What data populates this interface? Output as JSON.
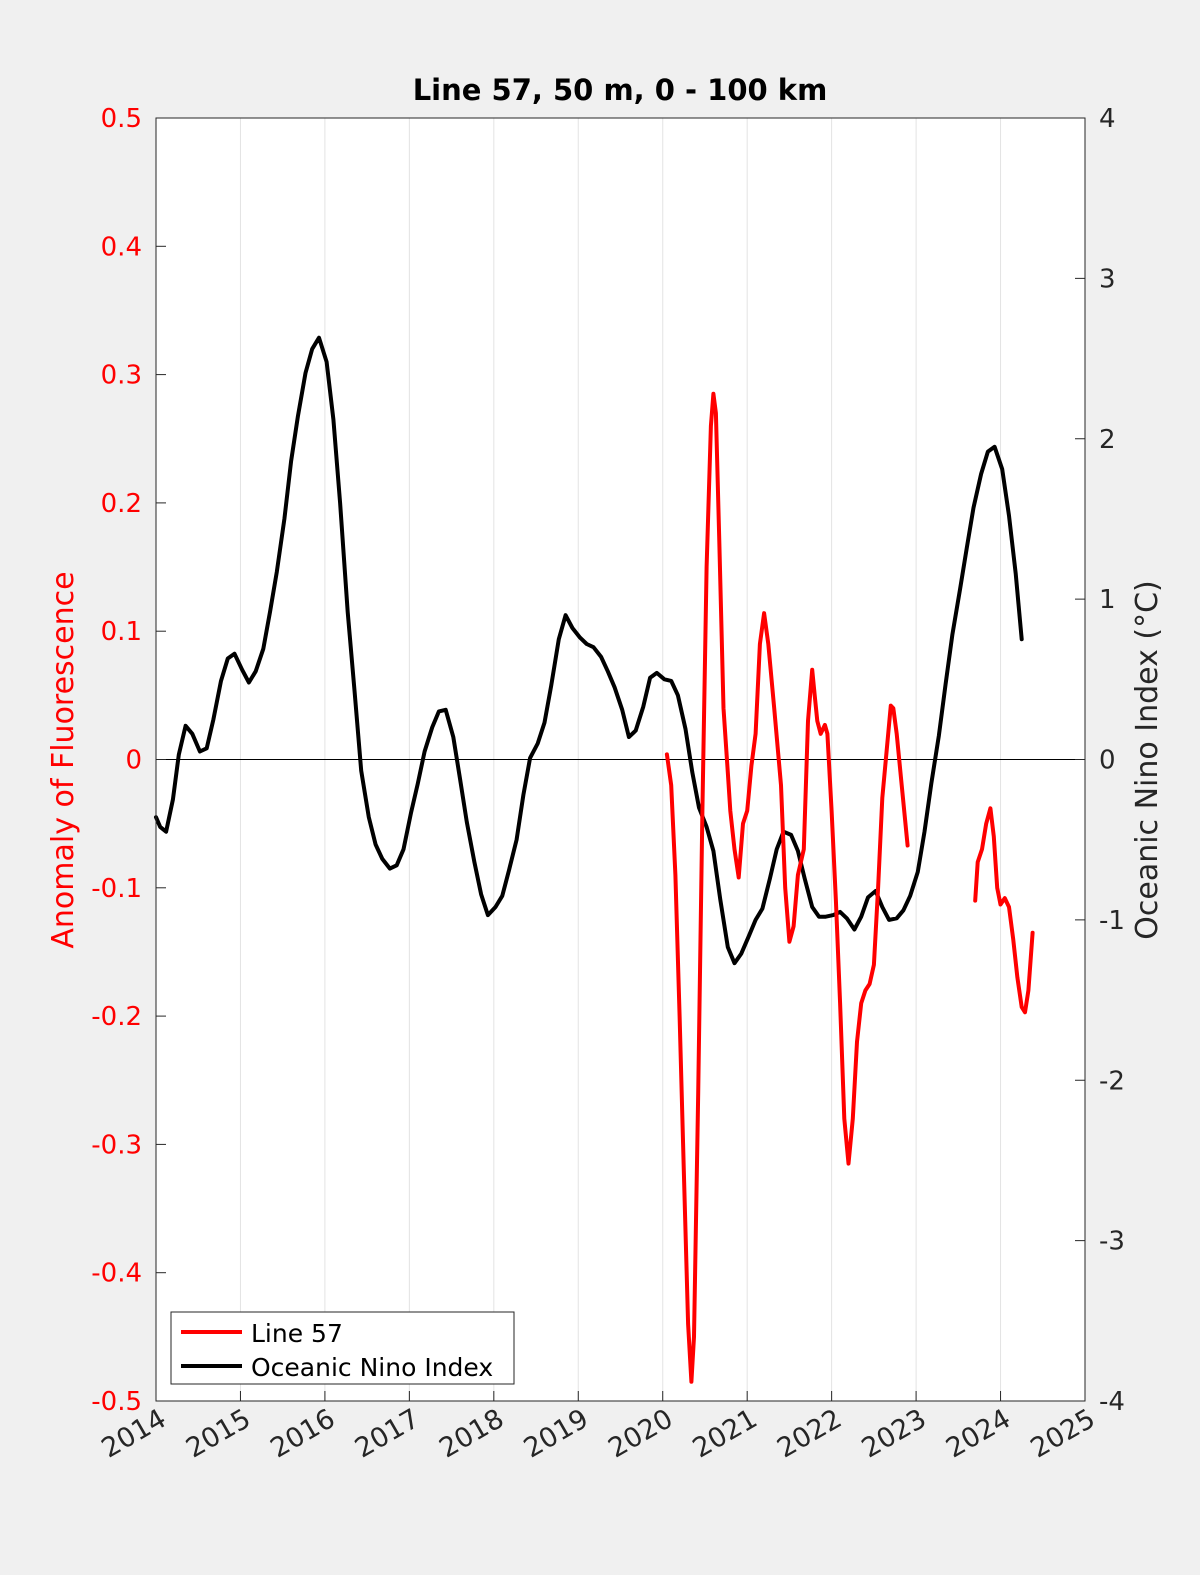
{
  "chart_data": {
    "type": "line",
    "title": "Line 57, 50 m, 0 - 100 km",
    "xlabel": "",
    "ylabel_left": "Anomaly of Fluorescence",
    "ylabel_right": "Oceanic Nino Index (°C)",
    "xlim": [
      2014,
      2025
    ],
    "ylim_left": [
      -0.5,
      0.5
    ],
    "ylim_right": [
      -4,
      4
    ],
    "x_ticks": [
      "2014",
      "2015",
      "2016",
      "2017",
      "2018",
      "2019",
      "2020",
      "2021",
      "2022",
      "2023",
      "2024",
      "2025"
    ],
    "y_ticks_left": [
      "-0.5",
      "-0.4",
      "-0.3",
      "-0.2",
      "-0.1",
      "0",
      "0.1",
      "0.2",
      "0.3",
      "0.4",
      "0.5"
    ],
    "y_ticks_right": [
      "-4",
      "-3",
      "-2",
      "-1",
      "0",
      "1",
      "2",
      "3",
      "4"
    ],
    "grid": "vertical",
    "zero_line": true,
    "legend": "bottom-left",
    "series": [
      {
        "name": "Line 57",
        "axis": "left",
        "color": "#ff0000",
        "segments": [
          [
            [
              2020.05,
              0.004
            ],
            [
              2020.1,
              -0.02
            ],
            [
              2020.15,
              -0.09
            ],
            [
              2020.2,
              -0.2
            ],
            [
              2020.25,
              -0.32
            ],
            [
              2020.3,
              -0.44
            ],
            [
              2020.34,
              -0.485
            ],
            [
              2020.37,
              -0.45
            ],
            [
              2020.42,
              -0.26
            ],
            [
              2020.47,
              -0.04
            ],
            [
              2020.52,
              0.15
            ],
            [
              2020.57,
              0.26
            ],
            [
              2020.6,
              0.285
            ],
            [
              2020.63,
              0.27
            ],
            [
              2020.67,
              0.17
            ],
            [
              2020.72,
              0.04
            ],
            [
              2020.77,
              -0.01
            ],
            [
              2020.8,
              -0.04
            ],
            [
              2020.85,
              -0.07
            ],
            [
              2020.9,
              -0.092
            ],
            [
              2020.95,
              -0.05
            ],
            [
              2021.0,
              -0.04
            ],
            [
              2021.05,
              -0.005
            ],
            [
              2021.1,
              0.02
            ],
            [
              2021.15,
              0.09
            ],
            [
              2021.2,
              0.114
            ],
            [
              2021.25,
              0.09
            ],
            [
              2021.32,
              0.04
            ],
            [
              2021.4,
              -0.02
            ],
            [
              2021.45,
              -0.1
            ],
            [
              2021.5,
              -0.142
            ],
            [
              2021.55,
              -0.13
            ],
            [
              2021.6,
              -0.09
            ],
            [
              2021.67,
              -0.07
            ],
            [
              2021.72,
              0.03
            ],
            [
              2021.77,
              0.07
            ],
            [
              2021.8,
              0.05
            ],
            [
              2021.83,
              0.03
            ],
            [
              2021.87,
              0.02
            ],
            [
              2021.92,
              0.027
            ],
            [
              2021.95,
              0.02
            ],
            [
              2022.0,
              -0.04
            ],
            [
              2022.05,
              -0.11
            ],
            [
              2022.1,
              -0.19
            ],
            [
              2022.15,
              -0.28
            ],
            [
              2022.2,
              -0.315
            ],
            [
              2022.25,
              -0.28
            ],
            [
              2022.3,
              -0.22
            ],
            [
              2022.35,
              -0.19
            ],
            [
              2022.4,
              -0.18
            ],
            [
              2022.45,
              -0.175
            ],
            [
              2022.5,
              -0.16
            ],
            [
              2022.55,
              -0.1
            ],
            [
              2022.6,
              -0.03
            ],
            [
              2022.67,
              0.02
            ],
            [
              2022.7,
              0.042
            ],
            [
              2022.73,
              0.04
            ],
            [
              2022.77,
              0.02
            ],
            [
              2022.83,
              -0.02
            ],
            [
              2022.9,
              -0.067
            ]
          ],
          [
            [
              2023.7,
              -0.11
            ],
            [
              2023.73,
              -0.08
            ],
            [
              2023.78,
              -0.07
            ],
            [
              2023.83,
              -0.05
            ],
            [
              2023.88,
              -0.038
            ],
            [
              2023.92,
              -0.06
            ],
            [
              2023.96,
              -0.1
            ],
            [
              2024.0,
              -0.113
            ],
            [
              2024.05,
              -0.108
            ],
            [
              2024.1,
              -0.115
            ],
            [
              2024.15,
              -0.14
            ],
            [
              2024.2,
              -0.17
            ],
            [
              2024.25,
              -0.193
            ],
            [
              2024.29,
              -0.197
            ],
            [
              2024.33,
              -0.18
            ],
            [
              2024.38,
              -0.135
            ]
          ]
        ]
      },
      {
        "name": "Oceanic Nino Index",
        "axis": "right",
        "color": "#000000",
        "segments": [
          [
            [
              2014.0,
              -0.36
            ],
            [
              2014.05,
              -0.42
            ],
            [
              2014.12,
              -0.45
            ],
            [
              2014.2,
              -0.25
            ],
            [
              2014.27,
              0.03
            ],
            [
              2014.35,
              0.21
            ],
            [
              2014.43,
              0.16
            ],
            [
              2014.52,
              0.05
            ],
            [
              2014.6,
              0.07
            ],
            [
              2014.68,
              0.25
            ],
            [
              2014.77,
              0.49
            ],
            [
              2014.85,
              0.63
            ],
            [
              2014.93,
              0.66
            ],
            [
              2015.02,
              0.56
            ],
            [
              2015.1,
              0.48
            ],
            [
              2015.18,
              0.55
            ],
            [
              2015.27,
              0.69
            ],
            [
              2015.35,
              0.92
            ],
            [
              2015.43,
              1.17
            ],
            [
              2015.52,
              1.5
            ],
            [
              2015.6,
              1.86
            ],
            [
              2015.68,
              2.14
            ],
            [
              2015.77,
              2.41
            ],
            [
              2015.85,
              2.56
            ],
            [
              2015.93,
              2.63
            ],
            [
              2016.02,
              2.48
            ],
            [
              2016.1,
              2.12
            ],
            [
              2016.18,
              1.6
            ],
            [
              2016.27,
              0.92
            ],
            [
              2016.35,
              0.43
            ],
            [
              2016.43,
              -0.07
            ],
            [
              2016.52,
              -0.36
            ],
            [
              2016.6,
              -0.53
            ],
            [
              2016.68,
              -0.62
            ],
            [
              2016.77,
              -0.68
            ],
            [
              2016.85,
              -0.66
            ],
            [
              2016.93,
              -0.56
            ],
            [
              2017.02,
              -0.33
            ],
            [
              2017.1,
              -0.15
            ],
            [
              2017.18,
              0.05
            ],
            [
              2017.27,
              0.2
            ],
            [
              2017.35,
              0.3
            ],
            [
              2017.43,
              0.31
            ],
            [
              2017.52,
              0.14
            ],
            [
              2017.6,
              -0.12
            ],
            [
              2017.68,
              -0.39
            ],
            [
              2017.77,
              -0.64
            ],
            [
              2017.85,
              -0.84
            ],
            [
              2017.93,
              -0.97
            ],
            [
              2018.02,
              -0.92
            ],
            [
              2018.1,
              -0.85
            ],
            [
              2018.18,
              -0.69
            ],
            [
              2018.27,
              -0.5
            ],
            [
              2018.35,
              -0.22
            ],
            [
              2018.43,
              0.01
            ],
            [
              2018.52,
              0.1
            ],
            [
              2018.6,
              0.23
            ],
            [
              2018.68,
              0.46
            ],
            [
              2018.77,
              0.75
            ],
            [
              2018.85,
              0.9
            ],
            [
              2018.93,
              0.82
            ],
            [
              2019.02,
              0.76
            ],
            [
              2019.1,
              0.72
            ],
            [
              2019.18,
              0.7
            ],
            [
              2019.27,
              0.64
            ],
            [
              2019.35,
              0.55
            ],
            [
              2019.43,
              0.45
            ],
            [
              2019.52,
              0.31
            ],
            [
              2019.6,
              0.14
            ],
            [
              2019.68,
              0.18
            ],
            [
              2019.77,
              0.33
            ],
            [
              2019.85,
              0.51
            ],
            [
              2019.93,
              0.54
            ],
            [
              2020.02,
              0.5
            ],
            [
              2020.1,
              0.49
            ],
            [
              2020.18,
              0.4
            ],
            [
              2020.27,
              0.19
            ],
            [
              2020.35,
              -0.08
            ],
            [
              2020.43,
              -0.3
            ],
            [
              2020.52,
              -0.42
            ],
            [
              2020.6,
              -0.57
            ],
            [
              2020.68,
              -0.87
            ],
            [
              2020.77,
              -1.17
            ],
            [
              2020.85,
              -1.27
            ],
            [
              2020.93,
              -1.21
            ],
            [
              2021.02,
              -1.1
            ],
            [
              2021.1,
              -1.0
            ],
            [
              2021.18,
              -0.93
            ],
            [
              2021.27,
              -0.74
            ],
            [
              2021.35,
              -0.56
            ],
            [
              2021.43,
              -0.45
            ],
            [
              2021.52,
              -0.47
            ],
            [
              2021.6,
              -0.57
            ],
            [
              2021.68,
              -0.74
            ],
            [
              2021.77,
              -0.92
            ],
            [
              2021.85,
              -0.98
            ],
            [
              2021.93,
              -0.98
            ],
            [
              2022.02,
              -0.97
            ],
            [
              2022.1,
              -0.95
            ],
            [
              2022.18,
              -0.99
            ],
            [
              2022.27,
              -1.06
            ],
            [
              2022.35,
              -0.98
            ],
            [
              2022.43,
              -0.86
            ],
            [
              2022.52,
              -0.82
            ],
            [
              2022.6,
              -0.92
            ],
            [
              2022.68,
              -1.0
            ],
            [
              2022.77,
              -0.99
            ],
            [
              2022.85,
              -0.94
            ],
            [
              2022.93,
              -0.85
            ],
            [
              2023.02,
              -0.7
            ],
            [
              2023.1,
              -0.45
            ],
            [
              2023.18,
              -0.15
            ],
            [
              2023.27,
              0.15
            ],
            [
              2023.35,
              0.47
            ],
            [
              2023.43,
              0.78
            ],
            [
              2023.52,
              1.06
            ],
            [
              2023.6,
              1.32
            ],
            [
              2023.68,
              1.57
            ],
            [
              2023.77,
              1.78
            ],
            [
              2023.85,
              1.92
            ],
            [
              2023.93,
              1.95
            ],
            [
              2024.02,
              1.81
            ],
            [
              2024.1,
              1.52
            ],
            [
              2024.18,
              1.16
            ],
            [
              2024.25,
              0.75
            ]
          ]
        ]
      }
    ]
  }
}
